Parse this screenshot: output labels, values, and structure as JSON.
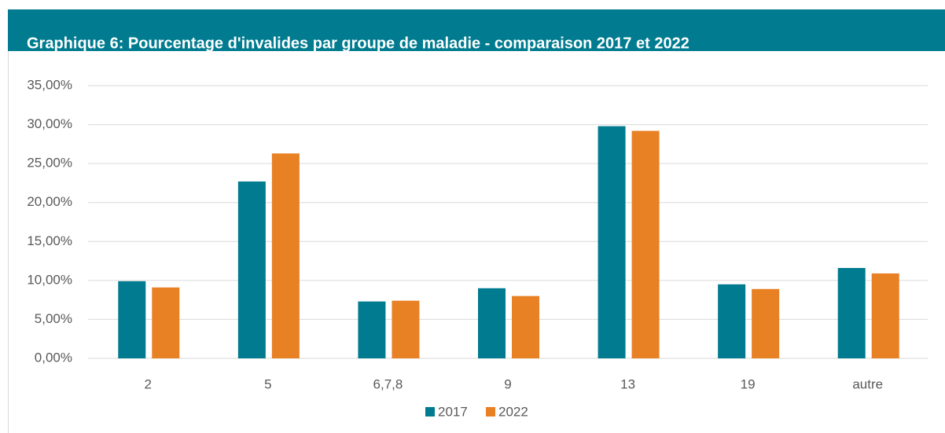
{
  "chart_data": {
    "type": "bar",
    "title": "Graphique 6: Pourcentage d'invalides par groupe de maladie - comparaison 2017 et 2022",
    "categories": [
      "2",
      "5",
      "6,7,8",
      "9",
      "13",
      "19",
      "autre"
    ],
    "series": [
      {
        "name": "2017",
        "color": "#007b8f",
        "values": [
          9.9,
          22.7,
          7.3,
          9.0,
          29.8,
          9.5,
          11.6
        ]
      },
      {
        "name": "2022",
        "color": "#e88024",
        "values": [
          9.1,
          26.3,
          7.4,
          8.0,
          29.2,
          8.9,
          10.9
        ]
      }
    ],
    "ylim": [
      0,
      35
    ],
    "yticks": [
      {
        "value": 0,
        "label": "0,00%"
      },
      {
        "value": 5,
        "label": "5,00%"
      },
      {
        "value": 10,
        "label": "10,00%"
      },
      {
        "value": 15,
        "label": "15,00%"
      },
      {
        "value": 20,
        "label": "20,00%"
      },
      {
        "value": 25,
        "label": "25,00%"
      },
      {
        "value": 30,
        "label": "30,00%"
      },
      {
        "value": 35,
        "label": "35,00%"
      }
    ],
    "grid": true,
    "legend": "bottom"
  }
}
